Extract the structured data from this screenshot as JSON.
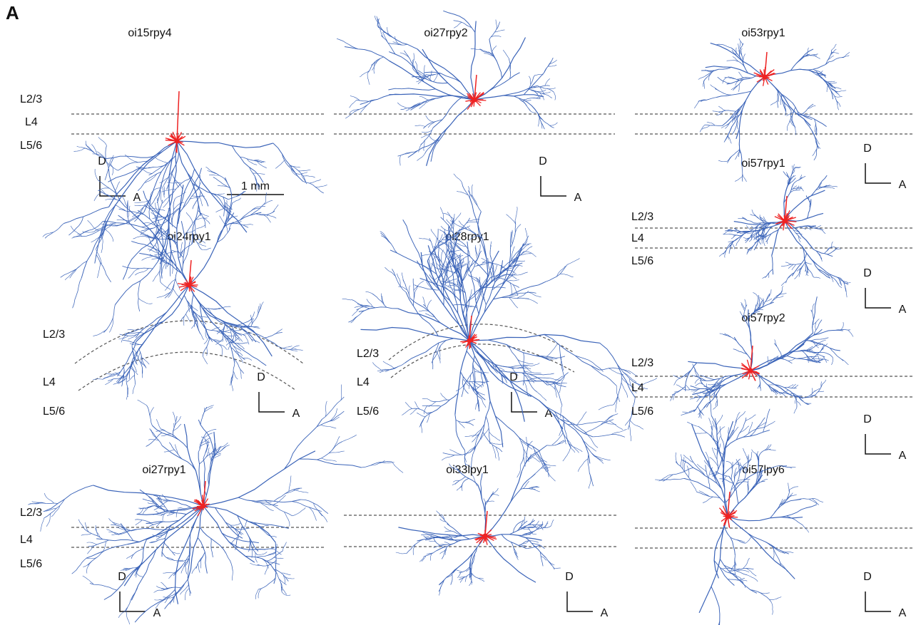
{
  "figure_label": "A",
  "scale_bar": "1 mm",
  "panels": [
    {
      "title": "oi15rpy4",
      "layers": [
        "L2/3",
        "L4",
        "L5/6"
      ],
      "axes": {
        "dorsal": "D",
        "anterior": "A"
      }
    },
    {
      "title": "oi27rpy2",
      "axes": {
        "dorsal": "D",
        "anterior": "A"
      }
    },
    {
      "title": "oi53rpy1",
      "axes": {
        "dorsal": "D",
        "anterior": "A"
      }
    },
    {
      "title": "oi57rpy1",
      "layers": [
        "L2/3",
        "L4",
        "L5/6"
      ],
      "axes": {
        "dorsal": "D",
        "anterior": "A"
      }
    },
    {
      "title": "oi24rpy1",
      "layers": [
        "L2/3",
        "L4",
        "L5/6"
      ],
      "axes": {
        "dorsal": "D",
        "anterior": "A"
      }
    },
    {
      "title": "oi28rpy1",
      "layers": [
        "L2/3",
        "L4",
        "L5/6"
      ],
      "axes": {
        "dorsal": "D",
        "anterior": "A"
      }
    },
    {
      "title": "oi57rpy2",
      "layers": [
        "L2/3",
        "L4",
        "L5/6"
      ],
      "axes": {
        "dorsal": "D",
        "anterior": "A"
      }
    },
    {
      "title": "oi27rpy1",
      "layers": [
        "L2/3",
        "L4",
        "L5/6"
      ],
      "axes": {
        "dorsal": "D",
        "anterior": "A"
      }
    },
    {
      "title": "oi33lpy1",
      "axes": {
        "dorsal": "D",
        "anterior": "A"
      }
    },
    {
      "title": "oi57lpy6",
      "axes": {
        "dorsal": "D",
        "anterior": "A"
      }
    }
  ]
}
